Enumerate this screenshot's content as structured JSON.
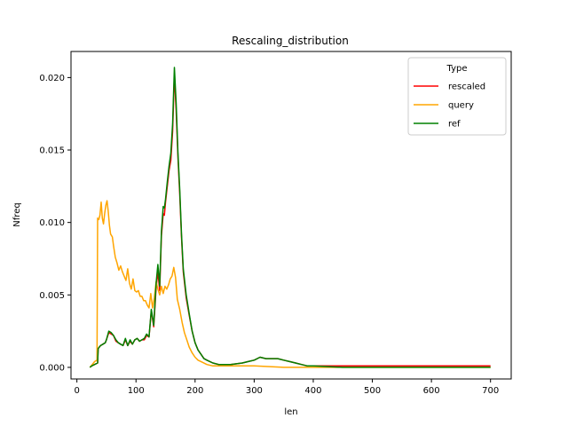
{
  "chart_data": {
    "type": "line",
    "title": "Rescaling_distribution",
    "xlabel": "len",
    "ylabel": "Nfreq",
    "xlim": [
      -10,
      735
    ],
    "ylim": [
      -0.0008,
      0.0218
    ],
    "xticks": [
      0,
      100,
      200,
      300,
      400,
      500,
      600,
      700
    ],
    "yticks": [
      0.0,
      0.005,
      0.01,
      0.015,
      0.02
    ],
    "ytick_labels": [
      "0.000",
      "0.005",
      "0.010",
      "0.015",
      "0.020"
    ],
    "grid": false,
    "legend": {
      "title": "Type",
      "placement": "top-right"
    },
    "series": [
      {
        "name": "rescaled",
        "color": "#ff0000",
        "points": [
          [
            22,
            0.0
          ],
          [
            25,
            0.0001
          ],
          [
            30,
            0.0002
          ],
          [
            35,
            0.0003
          ],
          [
            36,
            0.0013
          ],
          [
            40,
            0.0015
          ],
          [
            44,
            0.0016
          ],
          [
            48,
            0.0017
          ],
          [
            50,
            0.0019
          ],
          [
            54,
            0.0024
          ],
          [
            58,
            0.0023
          ],
          [
            62,
            0.0022
          ],
          [
            66,
            0.0018
          ],
          [
            70,
            0.0017
          ],
          [
            74,
            0.0016
          ],
          [
            78,
            0.0015
          ],
          [
            82,
            0.0019
          ],
          [
            86,
            0.0015
          ],
          [
            90,
            0.0018
          ],
          [
            94,
            0.0016
          ],
          [
            98,
            0.0019
          ],
          [
            102,
            0.002
          ],
          [
            106,
            0.0018
          ],
          [
            110,
            0.0019
          ],
          [
            114,
            0.0019
          ],
          [
            118,
            0.0022
          ],
          [
            122,
            0.0021
          ],
          [
            126,
            0.0039
          ],
          [
            130,
            0.0028
          ],
          [
            134,
            0.0055
          ],
          [
            137,
            0.0066
          ],
          [
            140,
            0.0053
          ],
          [
            143,
            0.0091
          ],
          [
            146,
            0.0106
          ],
          [
            148,
            0.0105
          ],
          [
            150,
            0.0114
          ],
          [
            153,
            0.0125
          ],
          [
            156,
            0.0136
          ],
          [
            159,
            0.0143
          ],
          [
            162,
            0.0163
          ],
          [
            165,
            0.0202
          ],
          [
            168,
            0.0177
          ],
          [
            171,
            0.0145
          ],
          [
            174,
            0.012
          ],
          [
            177,
            0.009
          ],
          [
            180,
            0.0066
          ],
          [
            185,
            0.0048
          ],
          [
            190,
            0.0036
          ],
          [
            195,
            0.0025
          ],
          [
            200,
            0.0017
          ],
          [
            205,
            0.0012
          ],
          [
            210,
            0.0009
          ],
          [
            215,
            0.0006
          ],
          [
            220,
            0.0005
          ],
          [
            230,
            0.0003
          ],
          [
            240,
            0.0002
          ],
          [
            260,
            0.0002
          ],
          [
            280,
            0.0003
          ],
          [
            290,
            0.0004
          ],
          [
            300,
            0.0005
          ],
          [
            310,
            0.0007
          ],
          [
            320,
            0.0006
          ],
          [
            330,
            0.0006
          ],
          [
            340,
            0.0006
          ],
          [
            350,
            0.0005
          ],
          [
            360,
            0.0004
          ],
          [
            370,
            0.0003
          ],
          [
            380,
            0.0002
          ],
          [
            390,
            0.0001
          ],
          [
            400,
            0.0001
          ],
          [
            450,
            0.0001
          ],
          [
            500,
            0.0001
          ],
          [
            550,
            0.0001
          ],
          [
            600,
            0.0001
          ],
          [
            650,
            0.0001
          ],
          [
            700,
            0.0001
          ]
        ]
      },
      {
        "name": "query",
        "color": "#ffa500",
        "points": [
          [
            22,
            0.0
          ],
          [
            26,
            0.0002
          ],
          [
            30,
            0.0004
          ],
          [
            34,
            0.0005
          ],
          [
            35,
            0.0103
          ],
          [
            37,
            0.0102
          ],
          [
            39,
            0.0105
          ],
          [
            41,
            0.0114
          ],
          [
            43,
            0.0103
          ],
          [
            45,
            0.0099
          ],
          [
            47,
            0.0106
          ],
          [
            49,
            0.0112
          ],
          [
            51,
            0.0115
          ],
          [
            53,
            0.0108
          ],
          [
            55,
            0.0098
          ],
          [
            57,
            0.0092
          ],
          [
            60,
            0.009
          ],
          [
            62,
            0.0084
          ],
          [
            65,
            0.0076
          ],
          [
            68,
            0.0072
          ],
          [
            71,
            0.0067
          ],
          [
            74,
            0.007
          ],
          [
            77,
            0.0066
          ],
          [
            80,
            0.0063
          ],
          [
            83,
            0.006
          ],
          [
            86,
            0.0068
          ],
          [
            89,
            0.0058
          ],
          [
            92,
            0.0054
          ],
          [
            95,
            0.0061
          ],
          [
            98,
            0.0053
          ],
          [
            101,
            0.0052
          ],
          [
            104,
            0.0053
          ],
          [
            107,
            0.0049
          ],
          [
            110,
            0.0049
          ],
          [
            113,
            0.0046
          ],
          [
            116,
            0.0046
          ],
          [
            119,
            0.0043
          ],
          [
            122,
            0.0041
          ],
          [
            125,
            0.0051
          ],
          [
            128,
            0.0041
          ],
          [
            131,
            0.0048
          ],
          [
            134,
            0.0059
          ],
          [
            137,
            0.0054
          ],
          [
            140,
            0.005
          ],
          [
            143,
            0.0056
          ],
          [
            146,
            0.0051
          ],
          [
            149,
            0.0056
          ],
          [
            152,
            0.0054
          ],
          [
            155,
            0.0057
          ],
          [
            158,
            0.0061
          ],
          [
            161,
            0.0063
          ],
          [
            164,
            0.0069
          ],
          [
            167,
            0.0062
          ],
          [
            170,
            0.0047
          ],
          [
            174,
            0.004
          ],
          [
            178,
            0.0031
          ],
          [
            182,
            0.0024
          ],
          [
            186,
            0.0019
          ],
          [
            190,
            0.0014
          ],
          [
            195,
            0.001
          ],
          [
            200,
            0.0007
          ],
          [
            205,
            0.0005
          ],
          [
            210,
            0.0004
          ],
          [
            220,
            0.0002
          ],
          [
            230,
            0.0001
          ],
          [
            250,
            0.0001
          ],
          [
            300,
            0.0001
          ],
          [
            350,
            0.0
          ],
          [
            400,
            0.0
          ],
          [
            500,
            0.0
          ],
          [
            600,
            0.0
          ],
          [
            700,
            0.0
          ]
        ]
      },
      {
        "name": "ref",
        "color": "#008000",
        "points": [
          [
            22,
            0.0
          ],
          [
            25,
            0.0001
          ],
          [
            30,
            0.0002
          ],
          [
            35,
            0.0003
          ],
          [
            36,
            0.0013
          ],
          [
            40,
            0.0015
          ],
          [
            44,
            0.0016
          ],
          [
            48,
            0.0017
          ],
          [
            50,
            0.0019
          ],
          [
            54,
            0.0025
          ],
          [
            58,
            0.0024
          ],
          [
            62,
            0.0022
          ],
          [
            66,
            0.0019
          ],
          [
            70,
            0.0017
          ],
          [
            74,
            0.0016
          ],
          [
            78,
            0.0015
          ],
          [
            82,
            0.002
          ],
          [
            86,
            0.0015
          ],
          [
            90,
            0.0019
          ],
          [
            94,
            0.0016
          ],
          [
            98,
            0.0019
          ],
          [
            102,
            0.002
          ],
          [
            106,
            0.0018
          ],
          [
            110,
            0.0019
          ],
          [
            114,
            0.002
          ],
          [
            118,
            0.0023
          ],
          [
            122,
            0.0021
          ],
          [
            126,
            0.004
          ],
          [
            130,
            0.0029
          ],
          [
            134,
            0.0058
          ],
          [
            137,
            0.0071
          ],
          [
            140,
            0.0056
          ],
          [
            143,
            0.0094
          ],
          [
            146,
            0.0111
          ],
          [
            148,
            0.011
          ],
          [
            150,
            0.0116
          ],
          [
            153,
            0.0128
          ],
          [
            156,
            0.0139
          ],
          [
            159,
            0.0148
          ],
          [
            162,
            0.0168
          ],
          [
            165,
            0.0207
          ],
          [
            168,
            0.0182
          ],
          [
            171,
            0.0148
          ],
          [
            174,
            0.0123
          ],
          [
            177,
            0.0092
          ],
          [
            180,
            0.0068
          ],
          [
            185,
            0.005
          ],
          [
            190,
            0.0037
          ],
          [
            195,
            0.0025
          ],
          [
            200,
            0.0017
          ],
          [
            205,
            0.0012
          ],
          [
            210,
            0.0009
          ],
          [
            215,
            0.0006
          ],
          [
            220,
            0.0005
          ],
          [
            230,
            0.0003
          ],
          [
            240,
            0.0002
          ],
          [
            260,
            0.0002
          ],
          [
            280,
            0.0003
          ],
          [
            290,
            0.0004
          ],
          [
            300,
            0.0005
          ],
          [
            310,
            0.0007
          ],
          [
            320,
            0.0006
          ],
          [
            330,
            0.0006
          ],
          [
            340,
            0.0006
          ],
          [
            350,
            0.0005
          ],
          [
            360,
            0.0004
          ],
          [
            370,
            0.0003
          ],
          [
            380,
            0.0002
          ],
          [
            390,
            0.0001
          ],
          [
            400,
            0.0001
          ],
          [
            450,
            0.0
          ],
          [
            500,
            0.0
          ],
          [
            550,
            0.0
          ],
          [
            600,
            0.0
          ],
          [
            650,
            0.0
          ],
          [
            700,
            0.0
          ]
        ]
      }
    ]
  }
}
